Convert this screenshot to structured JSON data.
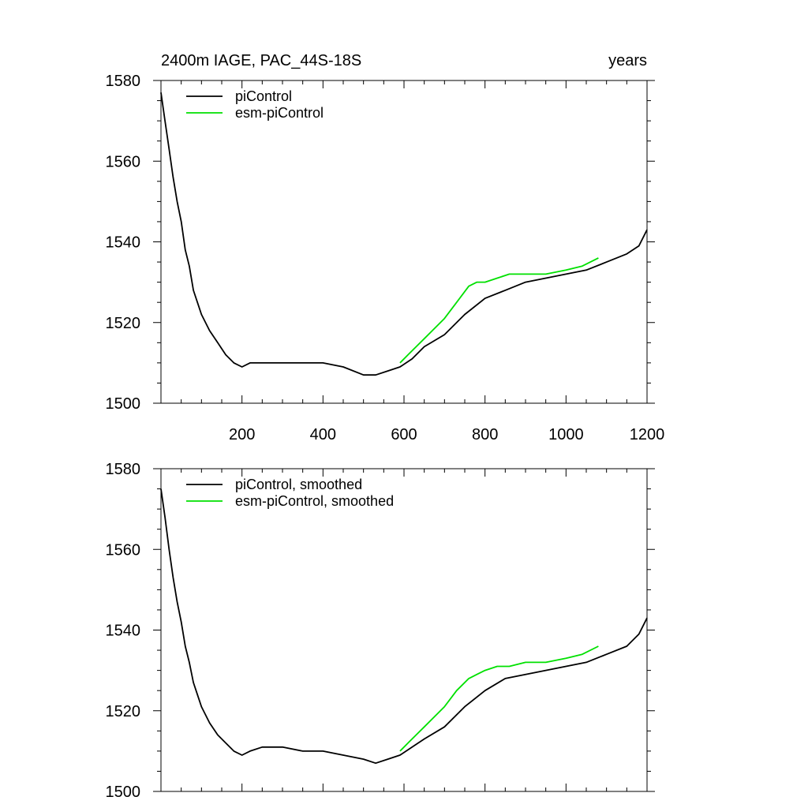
{
  "chart_data": [
    {
      "type": "line",
      "title": "2400m IAGE, PAC_44S-18S",
      "units_label": "years",
      "xlim": [
        0,
        1200
      ],
      "ylim": [
        1500,
        1580
      ],
      "xticks": [
        200,
        400,
        600,
        800,
        1000,
        1200
      ],
      "yticks": [
        1500,
        1520,
        1540,
        1560,
        1580
      ],
      "grid": false,
      "legend": "top-left",
      "series": [
        {
          "name": "piControl",
          "color": "#000000",
          "x": [
            0,
            10,
            20,
            30,
            40,
            50,
            60,
            70,
            80,
            90,
            100,
            120,
            140,
            160,
            180,
            200,
            220,
            250,
            300,
            350,
            400,
            450,
            500,
            530,
            560,
            590,
            620,
            650,
            700,
            750,
            800,
            850,
            900,
            950,
            1000,
            1050,
            1100,
            1150,
            1180,
            1200
          ],
          "y": [
            1577,
            1570,
            1563,
            1556,
            1550,
            1545,
            1538,
            1534,
            1528,
            1525,
            1522,
            1518,
            1515,
            1512,
            1510,
            1509,
            1510,
            1510,
            1510,
            1510,
            1510,
            1509,
            1507,
            1507,
            1508,
            1509,
            1511,
            1514,
            1517,
            1522,
            1526,
            1528,
            1530,
            1531,
            1532,
            1533,
            1535,
            1537,
            1539,
            1543
          ]
        },
        {
          "name": "esm-piControl",
          "color": "#00e000",
          "x": [
            590,
            610,
            630,
            650,
            670,
            700,
            730,
            760,
            780,
            800,
            830,
            860,
            900,
            950,
            1000,
            1040,
            1080
          ],
          "y": [
            1510,
            1512,
            1514,
            1516,
            1518,
            1521,
            1525,
            1529,
            1530,
            1530,
            1531,
            1532,
            1532,
            1532,
            1533,
            1534,
            1536
          ]
        }
      ]
    },
    {
      "type": "line",
      "title": "",
      "xlim": [
        0,
        1200
      ],
      "ylim": [
        1500,
        1580
      ],
      "xticks": [
        200,
        400,
        600,
        800,
        1000,
        1200
      ],
      "yticks": [
        1500,
        1520,
        1540,
        1560,
        1580
      ],
      "grid": false,
      "legend": "top-left",
      "series": [
        {
          "name": "piControl, smoothed",
          "color": "#000000",
          "x": [
            0,
            10,
            20,
            30,
            40,
            50,
            60,
            70,
            80,
            90,
            100,
            120,
            140,
            160,
            180,
            200,
            220,
            250,
            300,
            350,
            400,
            450,
            500,
            530,
            560,
            590,
            620,
            650,
            700,
            750,
            800,
            850,
            900,
            950,
            1000,
            1050,
            1100,
            1150,
            1180,
            1200
          ],
          "y": [
            1575,
            1568,
            1560,
            1553,
            1547,
            1542,
            1536,
            1532,
            1527,
            1524,
            1521,
            1517,
            1514,
            1512,
            1510,
            1509,
            1510,
            1511,
            1511,
            1510,
            1510,
            1509,
            1508,
            1507,
            1508,
            1509,
            1511,
            1513,
            1516,
            1521,
            1525,
            1528,
            1529,
            1530,
            1531,
            1532,
            1534,
            1536,
            1539,
            1543
          ]
        },
        {
          "name": "esm-piControl, smoothed",
          "color": "#00e000",
          "x": [
            590,
            610,
            630,
            650,
            670,
            700,
            730,
            760,
            780,
            800,
            830,
            860,
            900,
            950,
            1000,
            1040,
            1080
          ],
          "y": [
            1510,
            1512,
            1514,
            1516,
            1518,
            1521,
            1525,
            1528,
            1529,
            1530,
            1531,
            1531,
            1532,
            1532,
            1533,
            1534,
            1536
          ]
        }
      ]
    }
  ]
}
